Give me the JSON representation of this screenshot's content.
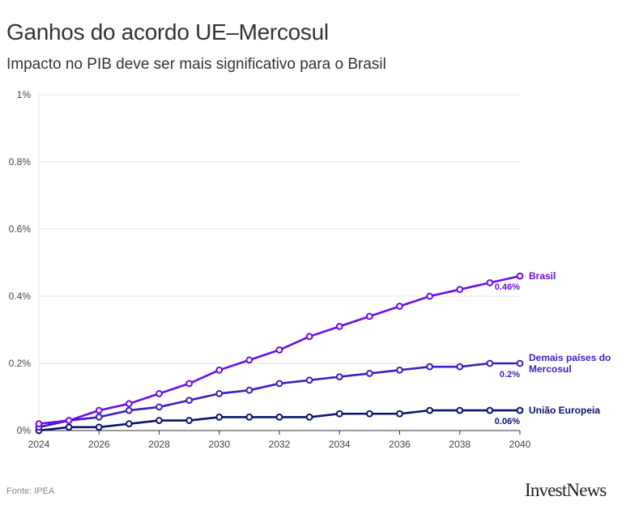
{
  "header": {
    "title": "Ganhos do acordo UE–Mercosul",
    "subtitle": "Impacto no PIB deve ser mais significativo para o Brasil"
  },
  "footer": {
    "source": "Fonte: IPEA",
    "logo": "InvestNews"
  },
  "chart_data": {
    "type": "line",
    "title": "Ganhos do acordo UE–Mercosul",
    "subtitle": "Impacto no PIB deve ser mais significativo para o Brasil",
    "xlabel": "",
    "ylabel": "",
    "x": [
      2024,
      2025,
      2026,
      2027,
      2028,
      2029,
      2030,
      2031,
      2032,
      2033,
      2034,
      2035,
      2036,
      2037,
      2038,
      2039,
      2040
    ],
    "x_ticks": [
      "2024",
      "2026",
      "2028",
      "2030",
      "2032",
      "2034",
      "2036",
      "2038",
      "2040"
    ],
    "y_ticks": [
      "0%",
      "0.2%",
      "0.4%",
      "0.6%",
      "0.8%",
      "1%"
    ],
    "ylim": [
      0,
      1
    ],
    "xlim": [
      2024,
      2040
    ],
    "grid": true,
    "series": [
      {
        "name": "Brasil",
        "label_lines": [
          "Brasil"
        ],
        "end_label": "0.46%",
        "color": "#6a0dea",
        "values": [
          0.02,
          0.03,
          0.06,
          0.08,
          0.11,
          0.14,
          0.18,
          0.21,
          0.24,
          0.28,
          0.31,
          0.34,
          0.37,
          0.4,
          0.42,
          0.44,
          0.46
        ]
      },
      {
        "name": "Demais países do Mercosul",
        "label_lines": [
          "Demais países do",
          "Mercosul"
        ],
        "end_label": "0.2%",
        "color": "#3a1fc4",
        "values": [
          0.01,
          0.03,
          0.04,
          0.06,
          0.07,
          0.09,
          0.11,
          0.12,
          0.14,
          0.15,
          0.16,
          0.17,
          0.18,
          0.19,
          0.19,
          0.2,
          0.2
        ]
      },
      {
        "name": "União Europeia",
        "label_lines": [
          "União Europeia"
        ],
        "end_label": "0.06%",
        "color": "#0c1270",
        "values": [
          0.0,
          0.01,
          0.01,
          0.02,
          0.03,
          0.03,
          0.04,
          0.04,
          0.04,
          0.04,
          0.05,
          0.05,
          0.05,
          0.06,
          0.06,
          0.06,
          0.06
        ]
      }
    ]
  }
}
